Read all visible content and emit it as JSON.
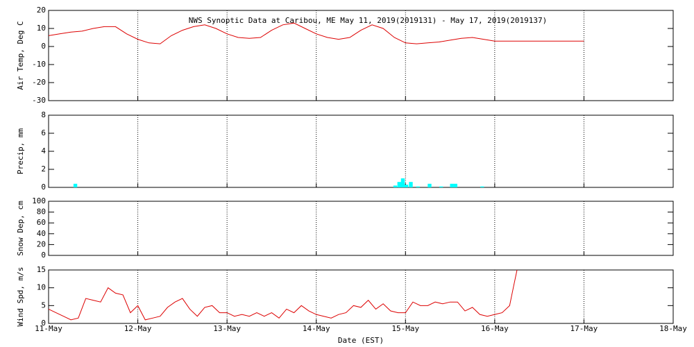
{
  "chart_data": [
    {
      "type": "line",
      "title": "NWS Synoptic Data at Caribou, ME   May 11, 2019(2019131) - May 17, 2019(2019137)",
      "ylabel": "Air Temp, Deg C",
      "xlim": [
        0,
        7
      ],
      "ylim": [
        -30,
        20
      ],
      "yticks": [
        -30,
        -20,
        -10,
        0,
        10,
        20
      ],
      "grid": "x",
      "x": [
        0,
        0.125,
        0.25,
        0.375,
        0.5,
        0.625,
        0.75,
        0.875,
        1.0,
        1.125,
        1.25,
        1.375,
        1.5,
        1.625,
        1.75,
        1.875,
        2.0,
        2.125,
        2.25,
        2.375,
        2.5,
        2.625,
        2.75,
        2.875,
        3.0,
        3.125,
        3.25,
        3.375,
        3.5,
        3.625,
        3.75,
        3.875,
        4.0,
        4.125,
        4.25,
        4.375,
        4.5,
        4.625,
        4.75,
        4.875,
        5.0,
        6.0
      ],
      "series": [
        {
          "name": "Air Temp",
          "color": "#dd0000",
          "values": [
            6,
            7,
            8,
            8.5,
            10,
            11,
            11,
            7,
            4,
            2,
            1.5,
            6,
            9,
            11,
            12,
            10,
            7,
            5,
            4.5,
            5,
            9,
            12,
            13,
            10,
            7,
            5,
            4,
            5,
            9,
            12,
            10,
            5,
            2,
            1.5,
            2,
            2.5,
            3.5,
            4.5,
            5,
            4,
            3,
            3
          ]
        }
      ]
    },
    {
      "type": "bar",
      "ylabel": "Precip, mm",
      "xlim": [
        0,
        7
      ],
      "ylim": [
        0,
        8
      ],
      "yticks": [
        0,
        2,
        4,
        6,
        8
      ],
      "grid": "x",
      "color": "#00ffff",
      "bar_width": 0.0417,
      "x": [
        0.3,
        3.885,
        3.93,
        3.97,
        4.01,
        4.06,
        4.14,
        4.27,
        4.4,
        4.52,
        4.56,
        4.86
      ],
      "values": [
        0.4,
        0.2,
        0.6,
        1.0,
        0.3,
        0.6,
        0.1,
        0.4,
        0.1,
        0.4,
        0.4,
        0.1
      ]
    },
    {
      "type": "line",
      "ylabel": "Snow Dep, cm",
      "xlim": [
        0,
        7
      ],
      "ylim": [
        0,
        100
      ],
      "yticks": [
        0,
        20,
        40,
        60,
        80,
        100
      ],
      "grid": "x",
      "series": []
    },
    {
      "type": "line",
      "ylabel": "Wind Spd, m/s",
      "xlabel": "Date (EST)",
      "xlim": [
        0,
        7
      ],
      "ylim": [
        0,
        15
      ],
      "yticks": [
        0,
        5,
        10,
        15
      ],
      "grid": "x",
      "xticks": [
        {
          "value": 0,
          "label": "11-May"
        },
        {
          "value": 1,
          "label": "12-May"
        },
        {
          "value": 2,
          "label": "13-May"
        },
        {
          "value": 3,
          "label": "14-May"
        },
        {
          "value": 4,
          "label": "15-May"
        },
        {
          "value": 5,
          "label": "16-May"
        },
        {
          "value": 6,
          "label": "17-May"
        },
        {
          "value": 7,
          "label": "18-May"
        }
      ],
      "x": [
        0,
        0.083,
        0.167,
        0.25,
        0.333,
        0.417,
        0.5,
        0.583,
        0.667,
        0.75,
        0.833,
        0.917,
        1.0,
        1.083,
        1.167,
        1.25,
        1.333,
        1.417,
        1.5,
        1.583,
        1.667,
        1.75,
        1.833,
        1.917,
        2.0,
        2.083,
        2.167,
        2.25,
        2.333,
        2.417,
        2.5,
        2.583,
        2.667,
        2.75,
        2.833,
        2.917,
        3.0,
        3.083,
        3.167,
        3.25,
        3.333,
        3.417,
        3.5,
        3.583,
        3.667,
        3.75,
        3.833,
        3.917,
        4.0,
        4.083,
        4.167,
        4.25,
        4.333,
        4.417,
        4.5,
        4.583,
        4.667,
        4.75,
        4.833,
        4.917,
        5.0,
        5.083,
        5.167,
        5.208,
        5.25
      ],
      "series": [
        {
          "name": "Wind Spd",
          "color": "#dd0000",
          "values": [
            4,
            3,
            2,
            1,
            1.5,
            7,
            6.5,
            6,
            10,
            8.5,
            8,
            3,
            5,
            1,
            1.5,
            2,
            4.5,
            6,
            7,
            4,
            2,
            4.5,
            5,
            3,
            3,
            2,
            2.5,
            2,
            3,
            2,
            3,
            1.5,
            4,
            3,
            5,
            3.5,
            2.5,
            2,
            1.5,
            2.5,
            3,
            5,
            4.5,
            6.5,
            4,
            5.5,
            3.5,
            3,
            3,
            6,
            5,
            5,
            6,
            5.5,
            6,
            6,
            3.5,
            4.5,
            2.5,
            2,
            2.5,
            3,
            5,
            10,
            15
          ]
        }
      ]
    }
  ]
}
